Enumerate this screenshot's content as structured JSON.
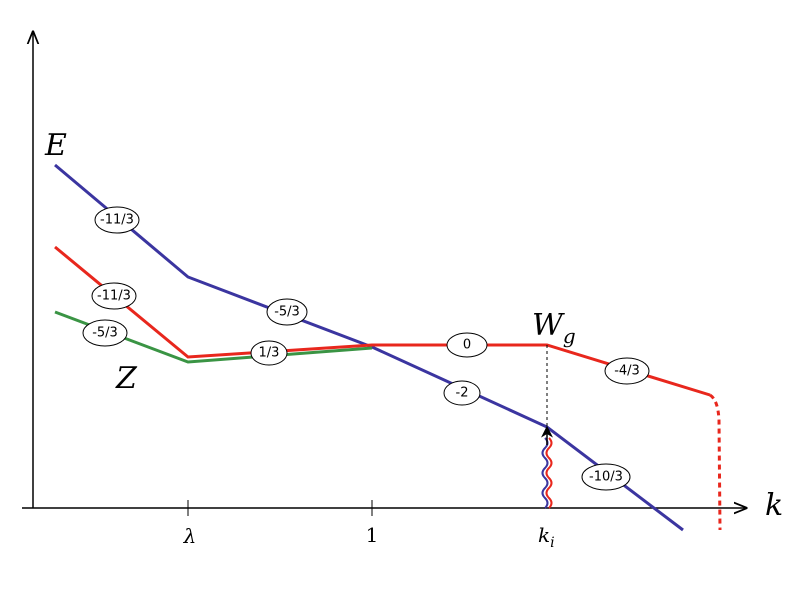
{
  "axis_labels": {
    "y": "E",
    "x": "k"
  },
  "ticks": [
    {
      "text": "λ"
    },
    {
      "text": "1"
    },
    {
      "text": "k",
      "sub": "i"
    }
  ],
  "curve_labels": [
    {
      "text": "W",
      "sub": "g"
    },
    {
      "text": "Z"
    }
  ],
  "slope_labels": [
    "-11/3",
    "-11/3",
    "-5/3",
    "1/3",
    "-5/3",
    "0",
    "-2",
    "-4/3",
    "-10/3"
  ]
}
